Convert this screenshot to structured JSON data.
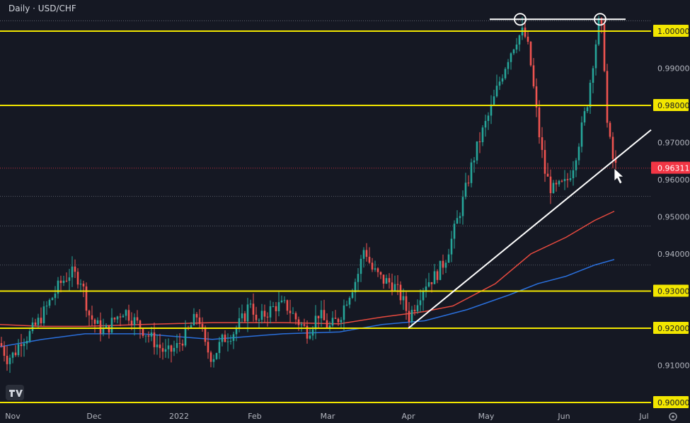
{
  "chart_data": {
    "type": "candlestick",
    "title": "Daily · USD/CHF",
    "ylim": [
      0.9,
      1.005
    ],
    "y_ticks": [
      "1.00000",
      "0.99000",
      "0.98000",
      "0.97000",
      "0.96000",
      "0.95000",
      "0.94000",
      "0.93000",
      "0.92000",
      "0.91000",
      "0.90000"
    ],
    "y_tick_values": [
      1.0,
      0.99,
      0.98,
      0.97,
      0.96,
      0.95,
      0.94,
      0.93,
      0.92,
      0.91,
      0.9
    ],
    "x_ticks": [
      "Nov",
      "Dec",
      "2022",
      "Feb",
      "Mar",
      "Apr",
      "May",
      "Jun",
      "Jul"
    ],
    "current_price": {
      "label": "0.96311",
      "value": 0.96311
    },
    "horizontal_levels": [
      1.0,
      0.98,
      0.93,
      0.92,
      0.9
    ],
    "dotted_levels": [
      1.0028,
      0.9631,
      0.9555,
      0.9475,
      0.937
    ],
    "trendline": {
      "start": {
        "month": "Apr",
        "price": 0.92
      },
      "end": {
        "month": "Jul",
        "price": 0.9715
      }
    },
    "top_line": {
      "price": 1.0028
    },
    "marked_highs": [
      {
        "month": "May",
        "price": 1.0028
      },
      {
        "month": "Jun",
        "price": 1.0028
      }
    ],
    "series": [
      {
        "name": "MA red",
        "color": "#e84a3f"
      },
      {
        "name": "MA blue",
        "color": "#2a6fdb"
      }
    ],
    "colors": {
      "up": "#26a69a",
      "down": "#ef5350",
      "level": "#f2e600",
      "trend": "#ffffff",
      "price_tag": "#f23645",
      "background": "#151823"
    },
    "ohlc_source": "daily candles reconstructed",
    "logo": "tradingview-logo"
  }
}
